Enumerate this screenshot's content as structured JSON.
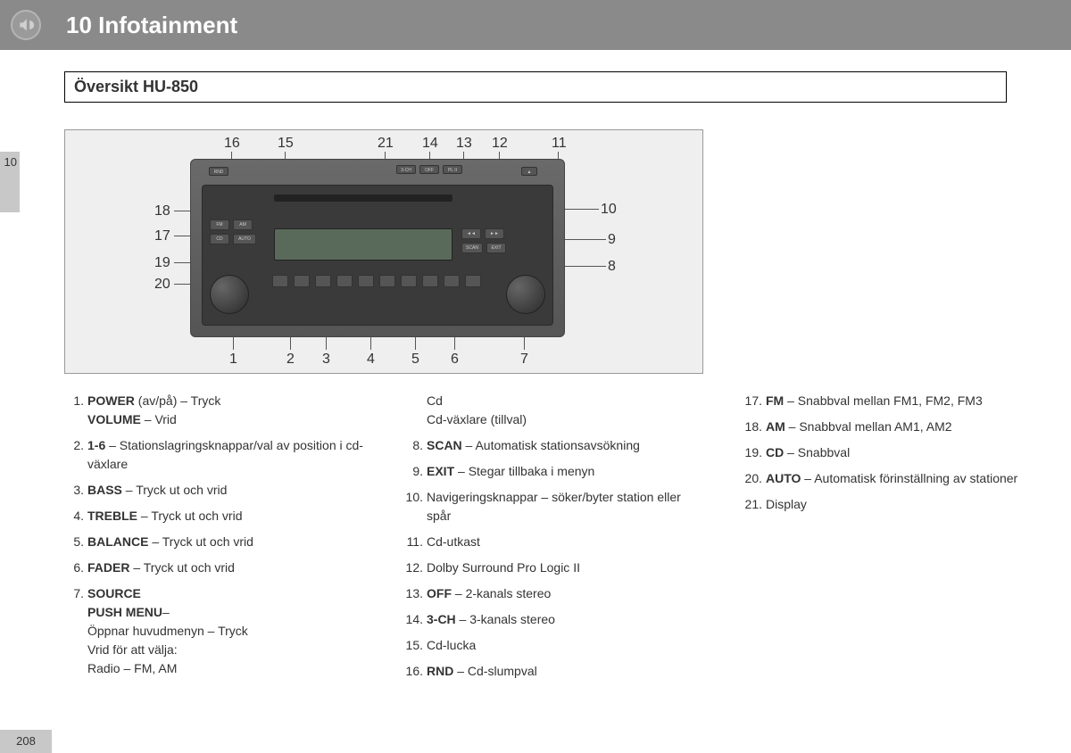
{
  "header": {
    "chapter": "10 Infotainment",
    "section": "Översikt HU-850",
    "tab": "10",
    "page": "208"
  },
  "callouts": {
    "top": [
      "16",
      "15",
      "21",
      "14",
      "13",
      "12",
      "11"
    ],
    "right": [
      "10",
      "9",
      "8"
    ],
    "left": [
      "18",
      "17",
      "19",
      "20"
    ],
    "bottom": [
      "1",
      "2",
      "3",
      "4",
      "5",
      "6",
      "7"
    ]
  },
  "col1": [
    {
      "n": "1.",
      "body": [
        {
          "b": "POWER",
          "t": " (av/på) – Tryck"
        },
        {
          "b": "VOLUME",
          "t": " – Vrid"
        }
      ]
    },
    {
      "n": "2.",
      "body": [
        {
          "b": "1-6",
          "t": " – Stationslagringsknappar/val av position i cd-växlare"
        }
      ]
    },
    {
      "n": "3.",
      "body": [
        {
          "b": "BASS",
          "t": " – Tryck ut och vrid"
        }
      ]
    },
    {
      "n": "4.",
      "body": [
        {
          "b": "TREBLE",
          "t": " – Tryck ut och vrid"
        }
      ]
    },
    {
      "n": "5.",
      "body": [
        {
          "b": "BALANCE",
          "t": " – Tryck ut och vrid"
        }
      ]
    },
    {
      "n": "6.",
      "body": [
        {
          "b": "FADER",
          "t": " – Tryck ut och vrid"
        }
      ]
    },
    {
      "n": "7.",
      "body": [
        {
          "b": "SOURCE",
          "t": ""
        },
        {
          "b": "PUSH MENU",
          "t": "–"
        },
        {
          "b": "",
          "t": "Öppnar huvudmenyn – Tryck"
        },
        {
          "b": "",
          "t": "Vrid för att välja:"
        },
        {
          "b": "",
          "t": "Radio – FM, AM"
        }
      ]
    }
  ],
  "col2": [
    {
      "n": "",
      "body": [
        {
          "b": "",
          "t": "Cd"
        },
        {
          "b": "",
          "t": "Cd-växlare (tillval)"
        }
      ]
    },
    {
      "n": "8.",
      "body": [
        {
          "b": "SCAN",
          "t": " – Automatisk stationsavsökning"
        }
      ]
    },
    {
      "n": "9.",
      "body": [
        {
          "b": "EXIT",
          "t": " – Stegar tillbaka i menyn"
        }
      ]
    },
    {
      "n": "10.",
      "body": [
        {
          "b": "",
          "t": "Navigeringsknappar – söker/byter station eller spår"
        }
      ]
    },
    {
      "n": "11.",
      "body": [
        {
          "b": "",
          "t": "Cd-utkast"
        }
      ]
    },
    {
      "n": "12.",
      "body": [
        {
          "b": "",
          "t": "Dolby Surround Pro Logic II"
        }
      ]
    },
    {
      "n": "13.",
      "body": [
        {
          "b": "OFF",
          "t": " – 2-kanals stereo"
        }
      ]
    },
    {
      "n": "14.",
      "body": [
        {
          "b": "3-CH",
          "t": " – 3-kanals stereo"
        }
      ]
    },
    {
      "n": "15.",
      "body": [
        {
          "b": "",
          "t": "Cd-lucka"
        }
      ]
    },
    {
      "n": "16.",
      "body": [
        {
          "b": "RND",
          "t": " – Cd-slumpval"
        }
      ]
    }
  ],
  "col3": [
    {
      "n": "17.",
      "body": [
        {
          "b": "FM",
          "t": " – Snabbval mellan FM1, FM2, FM3"
        }
      ]
    },
    {
      "n": "18.",
      "body": [
        {
          "b": "AM",
          "t": " – Snabbval mellan AM1, AM2"
        }
      ]
    },
    {
      "n": "19.",
      "body": [
        {
          "b": "CD",
          "t": " – Snabbval"
        }
      ]
    },
    {
      "n": "20.",
      "body": [
        {
          "b": "AUTO",
          "t": " – Automatisk förinställning av stationer"
        }
      ]
    },
    {
      "n": "21.",
      "body": [
        {
          "b": "",
          "t": "Display"
        }
      ]
    }
  ]
}
